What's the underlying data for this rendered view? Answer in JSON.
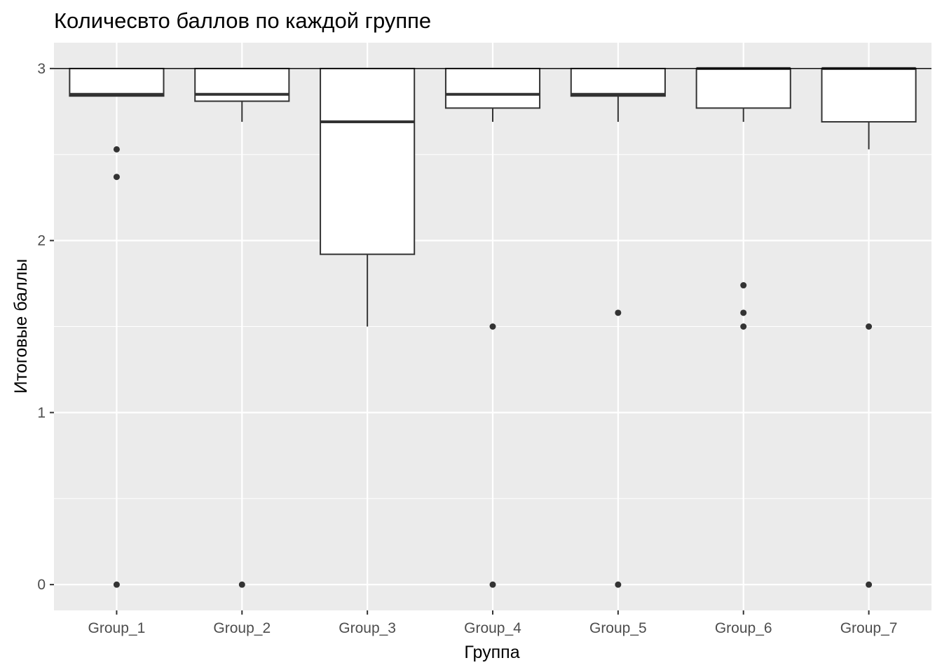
{
  "chart_data": {
    "type": "boxplot",
    "title": "Количесвто баллов по каждой группе",
    "xlabel": "Группа",
    "ylabel": "Итоговые баллы",
    "ylim": [
      -0.15,
      3.15
    ],
    "y_ticks": [
      0,
      1,
      2,
      3
    ],
    "y_minor_ticks": [
      0.5,
      1.5,
      2.5
    ],
    "reference_line": 3,
    "grid": true,
    "panel_background": "#EBEBEB",
    "box_fill": "#FFFFFF",
    "line_color": "#333333",
    "categories": [
      "Group_1",
      "Group_2",
      "Group_3",
      "Group_4",
      "Group_5",
      "Group_6",
      "Group_7"
    ],
    "boxes": [
      {
        "group": "Group_1",
        "whisker_low": 2.84,
        "q1": 2.84,
        "median": 2.85,
        "q3": 3.0,
        "whisker_high": 3.0,
        "outliers": [
          2.53,
          2.37,
          0
        ]
      },
      {
        "group": "Group_2",
        "whisker_low": 2.69,
        "q1": 2.81,
        "median": 2.85,
        "q3": 3.0,
        "whisker_high": 3.0,
        "outliers": [
          0
        ]
      },
      {
        "group": "Group_3",
        "whisker_low": 1.5,
        "q1": 1.92,
        "median": 2.69,
        "q3": 3.0,
        "whisker_high": 3.0,
        "outliers": []
      },
      {
        "group": "Group_4",
        "whisker_low": 2.69,
        "q1": 2.77,
        "median": 2.85,
        "q3": 3.0,
        "whisker_high": 3.0,
        "outliers": [
          1.5,
          0
        ]
      },
      {
        "group": "Group_5",
        "whisker_low": 2.69,
        "q1": 2.84,
        "median": 2.85,
        "q3": 3.0,
        "whisker_high": 3.0,
        "outliers": [
          1.58,
          0
        ]
      },
      {
        "group": "Group_6",
        "whisker_low": 2.69,
        "q1": 2.77,
        "median": 3.0,
        "q3": 3.0,
        "whisker_high": 3.0,
        "outliers": [
          1.74,
          1.58,
          1.5
        ]
      },
      {
        "group": "Group_7",
        "whisker_low": 2.53,
        "q1": 2.69,
        "median": 3.0,
        "q3": 3.0,
        "whisker_high": 3.0,
        "outliers": [
          1.5,
          0
        ]
      }
    ]
  }
}
